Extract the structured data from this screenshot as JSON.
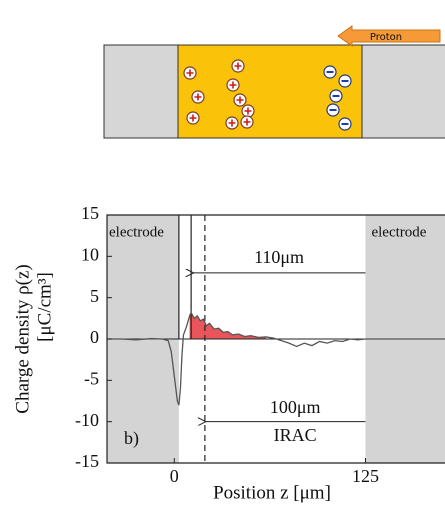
{
  "diagram": {
    "arrow_label": "Proton"
  },
  "chart_data": {
    "type": "line",
    "x": [
      -44,
      -35,
      -25,
      -15,
      -8,
      -4,
      -2,
      0,
      2,
      3,
      4,
      5,
      6,
      8,
      10,
      11,
      13,
      15,
      17,
      19,
      21,
      23,
      26,
      29,
      32,
      35,
      38,
      42,
      46,
      50,
      55,
      60,
      65,
      70,
      75,
      80,
      85,
      90,
      95,
      100,
      105,
      110,
      115,
      120,
      125,
      135,
      150,
      165,
      177
    ],
    "values": [
      0,
      0,
      -0.1,
      0.05,
      0,
      -0.2,
      -1.5,
      -4.5,
      -7.5,
      -8,
      -6,
      -2,
      0.5,
      1.5,
      2.8,
      3.2,
      2.5,
      2.8,
      2.2,
      2.4,
      1.6,
      1.9,
      1.2,
      1.3,
      0.8,
      0.9,
      0.5,
      0.6,
      0.3,
      0.4,
      0.2,
      0.25,
      0.1,
      -0.2,
      -0.5,
      -0.9,
      -0.5,
      -0.8,
      -0.3,
      -0.5,
      -0.2,
      -0.3,
      0,
      -0.1,
      0,
      0,
      0,
      0,
      0
    ],
    "color": "#555555",
    "fill_color": "#e8555a",
    "fill_range": [
      10,
      62
    ],
    "xlim": [
      -44,
      177
    ],
    "ylim": [
      -15,
      15
    ],
    "xticks": [
      0,
      125
    ],
    "yticks": [
      -15,
      -10,
      -5,
      0,
      5,
      10,
      15
    ],
    "xlabel": "Position z [μm]",
    "ylabel": "Charge density ρ(z)",
    "ylabel2": "[μC/cm³]",
    "electrodes": [
      [
        -44,
        3
      ],
      [
        125,
        177
      ]
    ],
    "electrode_label": "electrode",
    "vlines": [
      {
        "x": 3,
        "style": "solid"
      },
      {
        "x": 11,
        "style": "solid"
      },
      {
        "x": 20,
        "style": "dashed"
      }
    ],
    "annotations": [
      {
        "text": "110μm",
        "x_from": 125,
        "x_to": 12,
        "y": 8
      },
      {
        "text": "100μm",
        "text2": "IRAC",
        "x_from": 125,
        "x_to": 20,
        "y": -10
      }
    ],
    "panel_label": "b)"
  }
}
